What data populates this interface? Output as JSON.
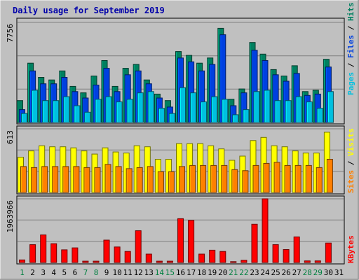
{
  "title": "Daily usage for September 2019",
  "colors": {
    "background": "#C0C0C0",
    "panel_bg": "#C0C0C0",
    "title": "#0000AA",
    "pages": "#00C0E0",
    "files": "#0040E0",
    "hits": "#008060",
    "visits": "#FFFF00",
    "sites": "#FF8000",
    "kbytes": "#FF0000",
    "weekday_label": "#000000",
    "weekend_label": "#008040"
  },
  "chart_data": [
    {
      "type": "bar",
      "panel": "hits_files_pages",
      "ymax_label": "7756",
      "ymax": 7756,
      "right_labels": [
        "Pages",
        "Files",
        "Hits"
      ],
      "series": [
        {
          "name": "Hits",
          "values": [
            1700,
            4600,
            3500,
            3300,
            4000,
            2800,
            2300,
            3600,
            4800,
            2800,
            4200,
            4500,
            3300,
            2200,
            1700,
            5500,
            5200,
            4600,
            5000,
            7300,
            1800,
            2600,
            6200,
            5300,
            4100,
            3600,
            4400,
            2400,
            2500,
            4900
          ]
        },
        {
          "name": "Files",
          "values": [
            1000,
            4000,
            3000,
            3000,
            3500,
            2400,
            1900,
            2900,
            4200,
            2400,
            3700,
            4000,
            3000,
            1900,
            1200,
            5000,
            4700,
            4000,
            4500,
            6800,
            1300,
            2300,
            5600,
            4800,
            3700,
            3200,
            3800,
            2100,
            2200,
            4300
          ]
        },
        {
          "name": "Pages",
          "values": [
            700,
            2500,
            1700,
            1700,
            2000,
            1300,
            800,
            1800,
            2000,
            1600,
            1800,
            2300,
            2400,
            1100,
            700,
            2700,
            2300,
            1600,
            2000,
            1800,
            600,
            1000,
            2400,
            2500,
            1700,
            1700,
            2000,
            1600,
            1100,
            2400
          ]
        }
      ]
    },
    {
      "type": "bar",
      "panel": "visits_sites",
      "ymax_label": "613",
      "ymax": 613,
      "right_labels": [
        "Sites",
        "Visits"
      ],
      "series": [
        {
          "name": "Visits",
          "values": [
            340,
            400,
            450,
            440,
            440,
            430,
            400,
            370,
            430,
            390,
            380,
            450,
            440,
            320,
            320,
            470,
            470,
            470,
            450,
            420,
            310,
            350,
            500,
            530,
            450,
            440,
            400,
            380,
            380,
            580
          ]
        },
        {
          "name": "Sites",
          "values": [
            250,
            240,
            250,
            250,
            250,
            250,
            240,
            240,
            270,
            250,
            230,
            240,
            250,
            200,
            200,
            250,
            260,
            260,
            260,
            260,
            220,
            210,
            260,
            280,
            290,
            260,
            260,
            260,
            240,
            320
          ]
        }
      ]
    },
    {
      "type": "bar",
      "panel": "kbytes",
      "ymax_label": "1963966",
      "ymax": 1963966,
      "right_labels": [
        "KBytes"
      ],
      "series": [
        {
          "name": "KBytes",
          "values": [
            80000,
            550000,
            850000,
            580000,
            390000,
            450000,
            40000,
            40000,
            690000,
            480000,
            340000,
            980000,
            260000,
            40000,
            40000,
            1350000,
            1300000,
            260000,
            380000,
            340000,
            25000,
            70000,
            1180000,
            1963966,
            550000,
            400000,
            790000,
            50000,
            50000,
            600000
          ]
        }
      ]
    }
  ],
  "days": [
    "1",
    "2",
    "3",
    "4",
    "5",
    "6",
    "7",
    "8",
    "9",
    "10",
    "11",
    "12",
    "13",
    "14",
    "15",
    "16",
    "17",
    "18",
    "19",
    "20",
    "21",
    "22",
    "23",
    "24",
    "25",
    "26",
    "27",
    "28",
    "29",
    "30",
    "31"
  ],
  "weekend_days": [
    1,
    7,
    8,
    14,
    15,
    21,
    22,
    28,
    29
  ]
}
